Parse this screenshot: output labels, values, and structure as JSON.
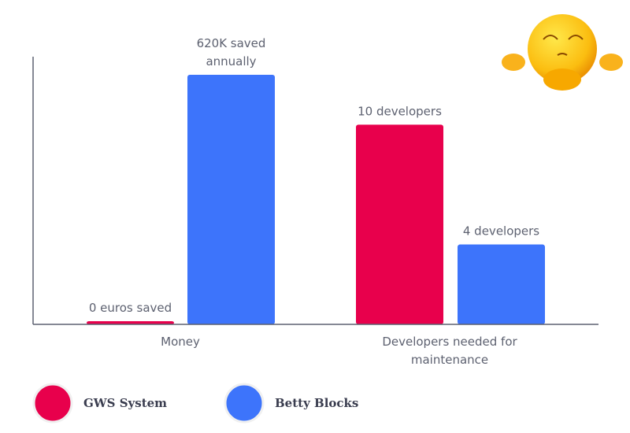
{
  "chart_data": {
    "type": "bar",
    "title": "",
    "xlabel": "",
    "ylabel": "",
    "categories": [
      "Money",
      "Developers needed for maintenance"
    ],
    "series": [
      {
        "name": "GWS System",
        "color": "#e8004c",
        "values": [
          0,
          10
        ],
        "labels": [
          "0 euros saved",
          "10 developers"
        ]
      },
      {
        "name": "Betty Blocks",
        "color": "#3d74fb",
        "values": [
          620000,
          4
        ],
        "labels": [
          "620K saved annually",
          "4 developers"
        ]
      }
    ],
    "category_max": [
      620000,
      12.5
    ],
    "legend": "bottom-left",
    "grid": false
  },
  "decoration": {
    "icon": "meditating-emoji-icon"
  }
}
